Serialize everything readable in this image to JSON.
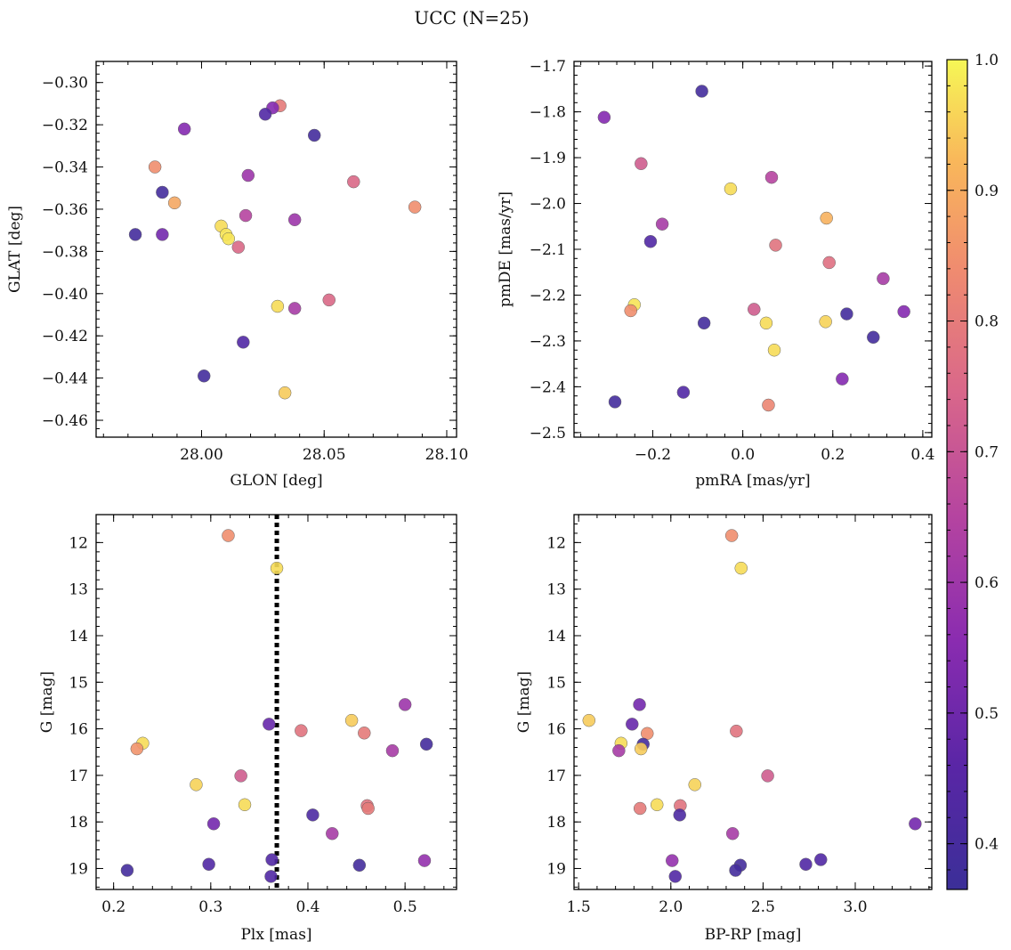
{
  "title": "UCC (N=25)",
  "colormap": {
    "name": "plasma",
    "min": 0.365,
    "max": 1.0
  },
  "colorbar": {
    "ticks": [
      0.4,
      0.5,
      0.6,
      0.7,
      0.8,
      0.9,
      1.0
    ],
    "tick_labels": [
      "0.4",
      "0.5",
      "0.6",
      "0.7",
      "0.8",
      "0.9",
      "1.0"
    ]
  },
  "chart_data": [
    {
      "type": "scatter",
      "xlabel": "GLON [deg]",
      "ylabel": "GLAT [deg]",
      "xlim": [
        27.957,
        28.104
      ],
      "ylim": [
        -0.468,
        -0.29
      ],
      "xticks": [
        28.0,
        28.05,
        28.1
      ],
      "xtick_labels": [
        "28.00",
        "28.05",
        "28.10"
      ],
      "yticks": [
        -0.46,
        -0.44,
        -0.42,
        -0.4,
        -0.38,
        -0.36,
        -0.34,
        -0.32,
        -0.3
      ],
      "ytick_labels": [
        "−0.46",
        "−0.44",
        "−0.42",
        "−0.40",
        "−0.38",
        "−0.36",
        "−0.34",
        "−0.32",
        "−0.30"
      ],
      "points": [
        {
          "x": 28.032,
          "y": -0.311,
          "c": 0.8
        },
        {
          "x": 28.029,
          "y": -0.312,
          "c": 0.55
        },
        {
          "x": 28.026,
          "y": -0.315,
          "c": 0.45
        },
        {
          "x": 28.046,
          "y": -0.325,
          "c": 0.4
        },
        {
          "x": 27.993,
          "y": -0.322,
          "c": 0.55
        },
        {
          "x": 27.981,
          "y": -0.34,
          "c": 0.85
        },
        {
          "x": 28.019,
          "y": -0.344,
          "c": 0.6
        },
        {
          "x": 28.062,
          "y": -0.347,
          "c": 0.75
        },
        {
          "x": 27.984,
          "y": -0.352,
          "c": 0.4
        },
        {
          "x": 27.989,
          "y": -0.357,
          "c": 0.9
        },
        {
          "x": 28.087,
          "y": -0.359,
          "c": 0.85
        },
        {
          "x": 28.018,
          "y": -0.363,
          "c": 0.65
        },
        {
          "x": 28.038,
          "y": -0.365,
          "c": 0.6
        },
        {
          "x": 28.008,
          "y": -0.368,
          "c": 0.97
        },
        {
          "x": 27.973,
          "y": -0.372,
          "c": 0.4
        },
        {
          "x": 27.984,
          "y": -0.372,
          "c": 0.52
        },
        {
          "x": 28.01,
          "y": -0.372,
          "c": 0.98
        },
        {
          "x": 28.011,
          "y": -0.374,
          "c": 0.98
        },
        {
          "x": 28.015,
          "y": -0.378,
          "c": 0.75
        },
        {
          "x": 28.052,
          "y": -0.403,
          "c": 0.75
        },
        {
          "x": 28.031,
          "y": -0.406,
          "c": 0.97
        },
        {
          "x": 28.038,
          "y": -0.407,
          "c": 0.62
        },
        {
          "x": 28.017,
          "y": -0.423,
          "c": 0.45
        },
        {
          "x": 28.001,
          "y": -0.439,
          "c": 0.4
        },
        {
          "x": 28.034,
          "y": -0.447,
          "c": 0.95
        }
      ]
    },
    {
      "type": "scatter",
      "xlabel": "pmRA [mas/yr]",
      "ylabel": "pmDE [mas/yr]",
      "xlim": [
        -0.375,
        0.42
      ],
      "ylim": [
        -2.51,
        -1.69
      ],
      "xticks": [
        -0.2,
        0.0,
        0.2,
        0.4
      ],
      "xtick_labels": [
        "−0.2",
        "0.0",
        "0.2",
        "0.4"
      ],
      "yticks": [
        -2.5,
        -2.4,
        -2.3,
        -2.2,
        -2.1,
        -2.0,
        -1.9,
        -1.8,
        -1.7
      ],
      "ytick_labels": [
        "−2.5",
        "−2.4",
        "−2.3",
        "−2.2",
        "−2.1",
        "−2.0",
        "−1.9",
        "−1.8",
        "−1.7"
      ],
      "points": [
        {
          "x": -0.091,
          "y": -1.755,
          "c": 0.4
        },
        {
          "x": -0.308,
          "y": -1.812,
          "c": 0.55
        },
        {
          "x": -0.226,
          "y": -1.913,
          "c": 0.72
        },
        {
          "x": 0.064,
          "y": -1.943,
          "c": 0.65
        },
        {
          "x": -0.027,
          "y": -1.968,
          "c": 0.97
        },
        {
          "x": 0.186,
          "y": -2.032,
          "c": 0.92
        },
        {
          "x": -0.179,
          "y": -2.045,
          "c": 0.62
        },
        {
          "x": -0.205,
          "y": -2.083,
          "c": 0.45
        },
        {
          "x": 0.073,
          "y": -2.091,
          "c": 0.78
        },
        {
          "x": 0.192,
          "y": -2.129,
          "c": 0.77
        },
        {
          "x": 0.312,
          "y": -2.164,
          "c": 0.62
        },
        {
          "x": -0.241,
          "y": -2.221,
          "c": 0.98
        },
        {
          "x": -0.249,
          "y": -2.234,
          "c": 0.85
        },
        {
          "x": 0.025,
          "y": -2.231,
          "c": 0.72
        },
        {
          "x": 0.358,
          "y": -2.236,
          "c": 0.55
        },
        {
          "x": 0.231,
          "y": -2.241,
          "c": 0.4
        },
        {
          "x": 0.184,
          "y": -2.258,
          "c": 0.96
        },
        {
          "x": 0.052,
          "y": -2.261,
          "c": 0.97
        },
        {
          "x": -0.086,
          "y": -2.261,
          "c": 0.4
        },
        {
          "x": 0.29,
          "y": -2.292,
          "c": 0.4
        },
        {
          "x": 0.07,
          "y": -2.32,
          "c": 0.97
        },
        {
          "x": 0.221,
          "y": -2.383,
          "c": 0.55
        },
        {
          "x": -0.132,
          "y": -2.412,
          "c": 0.45
        },
        {
          "x": -0.284,
          "y": -2.433,
          "c": 0.4
        },
        {
          "x": 0.057,
          "y": -2.44,
          "c": 0.83
        }
      ]
    },
    {
      "type": "scatter",
      "xlabel": "Plx [mas]",
      "ylabel": "G [mag]",
      "xlim": [
        0.182,
        0.553
      ],
      "ylim": [
        19.45,
        11.4
      ],
      "inverted_y": true,
      "vline": 0.368,
      "xticks": [
        0.2,
        0.3,
        0.4,
        0.5
      ],
      "xtick_labels": [
        "0.2",
        "0.3",
        "0.4",
        "0.5"
      ],
      "yticks": [
        12,
        13,
        14,
        15,
        16,
        17,
        18,
        19
      ],
      "ytick_labels": [
        "12",
        "13",
        "14",
        "15",
        "16",
        "17",
        "18",
        "19"
      ],
      "points": [
        {
          "x": 0.318,
          "y": 11.85,
          "c": 0.85
        },
        {
          "x": 0.368,
          "y": 12.55,
          "c": 0.97
        },
        {
          "x": 0.5,
          "y": 15.48,
          "c": 0.6
        },
        {
          "x": 0.445,
          "y": 15.82,
          "c": 0.95
        },
        {
          "x": 0.36,
          "y": 15.9,
          "c": 0.5
        },
        {
          "x": 0.393,
          "y": 16.04,
          "c": 0.78
        },
        {
          "x": 0.458,
          "y": 16.09,
          "c": 0.8
        },
        {
          "x": 0.23,
          "y": 16.31,
          "c": 0.97
        },
        {
          "x": 0.522,
          "y": 16.33,
          "c": 0.4
        },
        {
          "x": 0.224,
          "y": 16.43,
          "c": 0.86
        },
        {
          "x": 0.487,
          "y": 16.47,
          "c": 0.62
        },
        {
          "x": 0.331,
          "y": 17.01,
          "c": 0.72
        },
        {
          "x": 0.285,
          "y": 17.2,
          "c": 0.96
        },
        {
          "x": 0.335,
          "y": 17.63,
          "c": 0.97
        },
        {
          "x": 0.461,
          "y": 17.65,
          "c": 0.78
        },
        {
          "x": 0.462,
          "y": 17.71,
          "c": 0.8
        },
        {
          "x": 0.405,
          "y": 17.85,
          "c": 0.43
        },
        {
          "x": 0.303,
          "y": 18.04,
          "c": 0.52
        },
        {
          "x": 0.425,
          "y": 18.25,
          "c": 0.62
        },
        {
          "x": 0.363,
          "y": 18.81,
          "c": 0.45
        },
        {
          "x": 0.52,
          "y": 18.83,
          "c": 0.58
        },
        {
          "x": 0.298,
          "y": 18.91,
          "c": 0.45
        },
        {
          "x": 0.453,
          "y": 18.93,
          "c": 0.4
        },
        {
          "x": 0.214,
          "y": 19.04,
          "c": 0.4
        },
        {
          "x": 0.362,
          "y": 19.17,
          "c": 0.45
        }
      ]
    },
    {
      "type": "scatter",
      "xlabel": "BP-RP [mag]",
      "ylabel": "G [mag]",
      "xlim": [
        1.475,
        3.415
      ],
      "ylim": [
        19.45,
        11.4
      ],
      "inverted_y": true,
      "xticks": [
        1.5,
        2.0,
        2.5,
        3.0
      ],
      "xtick_labels": [
        "1.5",
        "2.0",
        "2.5",
        "3.0"
      ],
      "yticks": [
        12,
        13,
        14,
        15,
        16,
        17,
        18,
        19
      ],
      "ytick_labels": [
        "12",
        "13",
        "14",
        "15",
        "16",
        "17",
        "18",
        "19"
      ],
      "points": [
        {
          "x": 2.33,
          "y": 11.85,
          "c": 0.85
        },
        {
          "x": 2.381,
          "y": 12.55,
          "c": 0.97
        },
        {
          "x": 1.83,
          "y": 15.48,
          "c": 0.52
        },
        {
          "x": 1.556,
          "y": 15.82,
          "c": 0.95
        },
        {
          "x": 1.79,
          "y": 15.9,
          "c": 0.5
        },
        {
          "x": 1.872,
          "y": 16.1,
          "c": 0.85
        },
        {
          "x": 2.355,
          "y": 16.05,
          "c": 0.78
        },
        {
          "x": 1.73,
          "y": 16.31,
          "c": 0.97
        },
        {
          "x": 1.85,
          "y": 16.33,
          "c": 0.4
        },
        {
          "x": 1.838,
          "y": 16.43,
          "c": 0.95
        },
        {
          "x": 1.718,
          "y": 16.47,
          "c": 0.62
        },
        {
          "x": 2.525,
          "y": 17.01,
          "c": 0.72
        },
        {
          "x": 2.13,
          "y": 17.2,
          "c": 0.96
        },
        {
          "x": 1.925,
          "y": 17.63,
          "c": 0.97
        },
        {
          "x": 2.051,
          "y": 17.65,
          "c": 0.78
        },
        {
          "x": 1.833,
          "y": 17.71,
          "c": 0.8
        },
        {
          "x": 2.048,
          "y": 17.85,
          "c": 0.43
        },
        {
          "x": 3.325,
          "y": 18.04,
          "c": 0.52
        },
        {
          "x": 2.335,
          "y": 18.25,
          "c": 0.62
        },
        {
          "x": 2.813,
          "y": 18.81,
          "c": 0.45
        },
        {
          "x": 2.007,
          "y": 18.83,
          "c": 0.58
        },
        {
          "x": 2.732,
          "y": 18.91,
          "c": 0.45
        },
        {
          "x": 2.377,
          "y": 18.93,
          "c": 0.4
        },
        {
          "x": 2.351,
          "y": 19.04,
          "c": 0.4
        },
        {
          "x": 2.024,
          "y": 19.17,
          "c": 0.45
        }
      ]
    }
  ]
}
